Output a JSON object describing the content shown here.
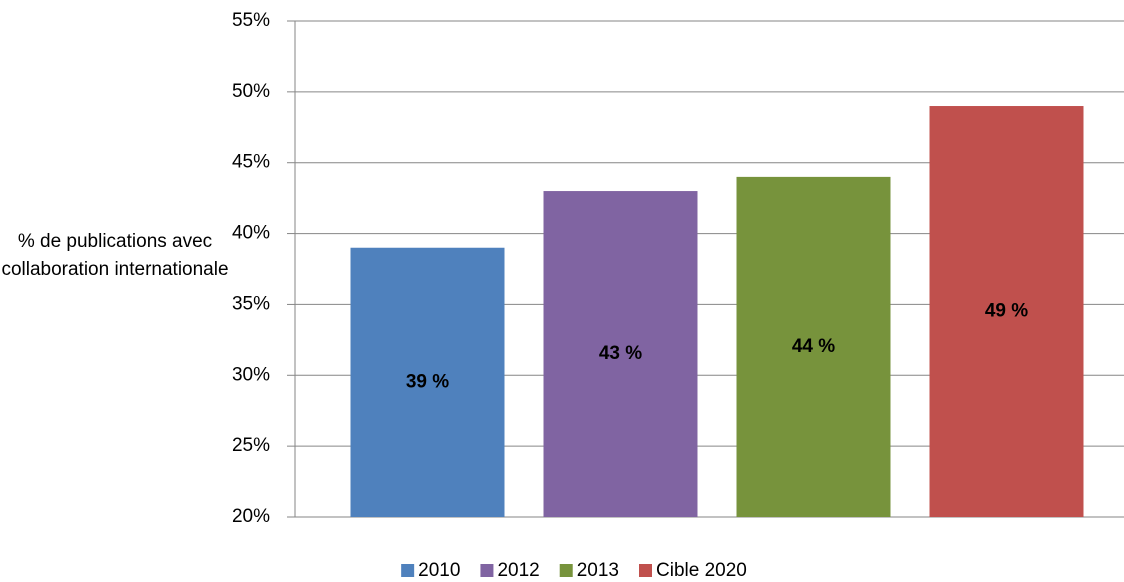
{
  "chart_data": {
    "type": "bar",
    "y_label": "% de publications avec collaboration internationale",
    "series": [
      {
        "name": "2010",
        "color": "#4f81bd",
        "values": [
          39
        ],
        "value_labels": [
          "39 %"
        ]
      },
      {
        "name": "2012",
        "color": "#8064a2",
        "values": [
          43
        ],
        "value_labels": [
          "43 %"
        ]
      },
      {
        "name": "2013",
        "color": "#77933c",
        "values": [
          44
        ],
        "value_labels": [
          "44 %"
        ]
      },
      {
        "name": "Cible 2020",
        "color": "#c0504d",
        "values": [
          49
        ],
        "value_labels": [
          "49 %"
        ]
      }
    ],
    "ylim": [
      20,
      55
    ],
    "yticks": [
      {
        "value": 20,
        "label": "20%"
      },
      {
        "value": 25,
        "label": "25%"
      },
      {
        "value": 30,
        "label": "30%"
      },
      {
        "value": 35,
        "label": "35%"
      },
      {
        "value": 40,
        "label": "40%"
      },
      {
        "value": 45,
        "label": "45%"
      },
      {
        "value": 50,
        "label": "50%"
      },
      {
        "value": 55,
        "label": "55%"
      }
    ],
    "grid": true,
    "legend": "bottom"
  }
}
